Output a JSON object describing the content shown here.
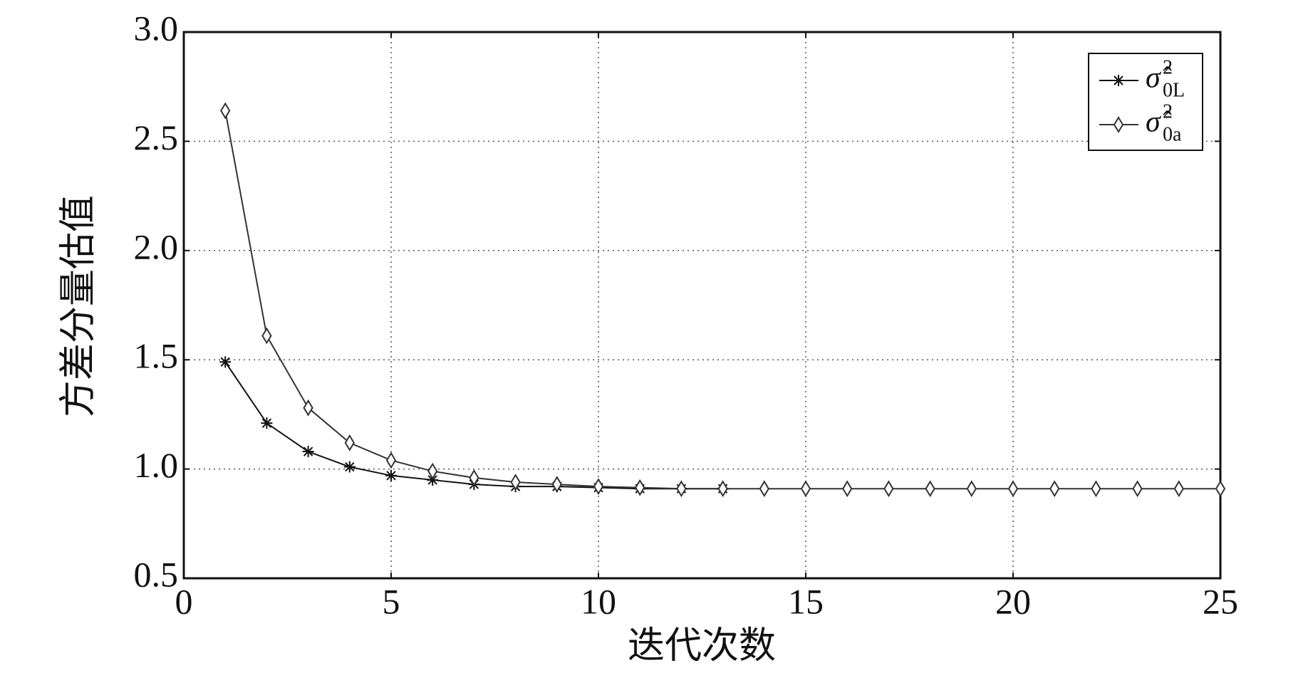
{
  "chart_data": {
    "type": "line",
    "x_label": "迭代次数",
    "y_label": "方差分量估值",
    "xlim": [
      0,
      25
    ],
    "ylim": [
      0.5,
      3.0
    ],
    "xticks": [
      0,
      5,
      10,
      15,
      20,
      25
    ],
    "yticks": [
      0.5,
      {
        "value": 1.0,
        "label": "1.0"
      },
      1.5,
      {
        "value": 2.0,
        "label": "2.0"
      },
      2.5,
      {
        "value": 3.0,
        "label": "3.0"
      }
    ],
    "grid": true,
    "legend": "upper right",
    "series": [
      {
        "name": "σ̂",
        "name_sup": "2",
        "name_sub": "0L",
        "color": "#111111",
        "marker": "star",
        "x": [
          1,
          2,
          3,
          4,
          5,
          6,
          7,
          8,
          9,
          10,
          11,
          12,
          13
        ],
        "values": [
          1.49,
          1.21,
          1.08,
          1.01,
          0.97,
          0.95,
          0.93,
          0.92,
          0.92,
          0.915,
          0.91,
          0.91,
          0.91
        ]
      },
      {
        "name": "σ̂",
        "name_sup": "2",
        "name_sub": "0a",
        "color": "#333333",
        "marker": "diamond",
        "x": [
          1,
          2,
          3,
          4,
          5,
          6,
          7,
          8,
          9,
          10,
          11,
          12,
          13,
          14,
          15,
          16,
          17,
          18,
          19,
          20,
          21,
          22,
          23,
          24,
          25
        ],
        "values": [
          2.64,
          1.61,
          1.28,
          1.12,
          1.04,
          0.99,
          0.96,
          0.94,
          0.93,
          0.92,
          0.915,
          0.91,
          0.91,
          0.91,
          0.91,
          0.91,
          0.91,
          0.91,
          0.91,
          0.91,
          0.91,
          0.91,
          0.91,
          0.91,
          0.91
        ]
      }
    ]
  }
}
